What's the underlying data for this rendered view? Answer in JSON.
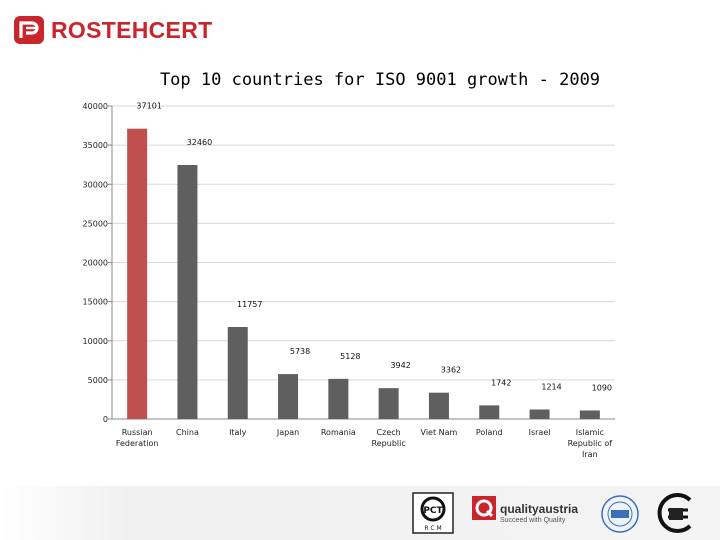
{
  "brand": {
    "name": "ROSTEHCERT",
    "color": "#c8262c",
    "logo_icon": "rostehcert-logo-icon"
  },
  "chart_data": {
    "type": "bar",
    "title": "Top 10 countries for ISO 9001 growth - 2009",
    "categories": [
      "Russian Federation",
      "China",
      "Italy",
      "Japan",
      "Romania",
      "Czech Republic",
      "Viet Nam",
      "Poland",
      "Israel",
      "Islamic Republic of Iran"
    ],
    "category_lines": [
      [
        "Russian",
        "Federation"
      ],
      [
        "China"
      ],
      [
        "Italy"
      ],
      [
        "Japan"
      ],
      [
        "Romania"
      ],
      [
        "Czech",
        "Republic"
      ],
      [
        "Viet Nam"
      ],
      [
        "Poland"
      ],
      [
        "Israel"
      ],
      [
        "Islamic",
        "Republic of",
        "Iran"
      ]
    ],
    "values": [
      37101,
      32460,
      11757,
      5738,
      5128,
      3942,
      3362,
      1742,
      1214,
      1090
    ],
    "data_labels": [
      "37101",
      "32460",
      "11757",
      "5738",
      "5128",
      "3942",
      "3362",
      "1742",
      "1214",
      "1090"
    ],
    "ylim": [
      0,
      40000
    ],
    "yticks": [
      0,
      5000,
      10000,
      15000,
      20000,
      25000,
      30000,
      35000,
      40000
    ],
    "ytick_labels": [
      "0",
      "5000",
      "10000",
      "15000",
      "20000",
      "25000",
      "30000",
      "35000",
      "40000"
    ],
    "grid": true,
    "colors": {
      "highlight": "#c0504d",
      "default": "#5f5f5f",
      "grid": "#d9d9d9"
    },
    "xlabel": "",
    "ylabel": ""
  },
  "footer": {
    "logos": [
      {
        "name": "gost-r-certification-logo-icon",
        "letters": "РСТ"
      },
      {
        "name": "quality-austria-logo-icon"
      },
      {
        "name": "certification-seal-logo-icon"
      },
      {
        "name": "circle-c-certification-logo-icon"
      }
    ],
    "quality_austria_name": "qualityaustria",
    "quality_austria_slogan": "Succeed with Quality"
  }
}
